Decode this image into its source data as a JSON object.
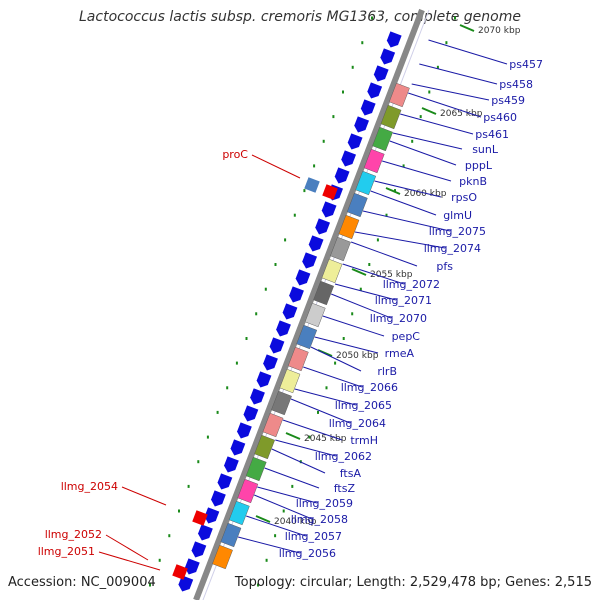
{
  "title": "Lactococcus lactis subsp. cremoris MG1363, complete genome",
  "footer": {
    "accession": "Accession: NC_009004",
    "topology": "Topology: circular; Length: 2,529,478 bp; Genes: 2,515"
  },
  "colors": {
    "label_right": "#1a1aa6",
    "label_left": "#cc0000",
    "backbone": "#888888",
    "strand_dots": "#1a8a1a",
    "gene_blue": "#0b0bdd"
  },
  "kbp_labels": [
    "2070 kbp",
    "2065 kbp",
    "2060 kbp",
    "2055 kbp",
    "2050 kbp",
    "2045 kbp",
    "2040 kbp"
  ],
  "right_labels": [
    "ps457",
    "ps458",
    "ps459",
    "ps460",
    "ps461",
    "sunL",
    "pppL",
    "pknB",
    "rpsO",
    "glmU",
    "llmg_2075",
    "llmg_2074",
    "pfs",
    "llmg_2072",
    "llmg_2071",
    "llmg_2070",
    "pepC",
    "rmeA",
    "rlrB",
    "llmg_2066",
    "llmg_2065",
    "llmg_2064",
    "trmH",
    "llmg_2062",
    "ftsA",
    "ftsZ",
    "llmg_2059",
    "llmg_2058",
    "llmg_2057",
    "llmg_2056"
  ],
  "left_labels": [
    "proC",
    "llmg_2054",
    "llmg_2052",
    "llmg_2051"
  ]
}
